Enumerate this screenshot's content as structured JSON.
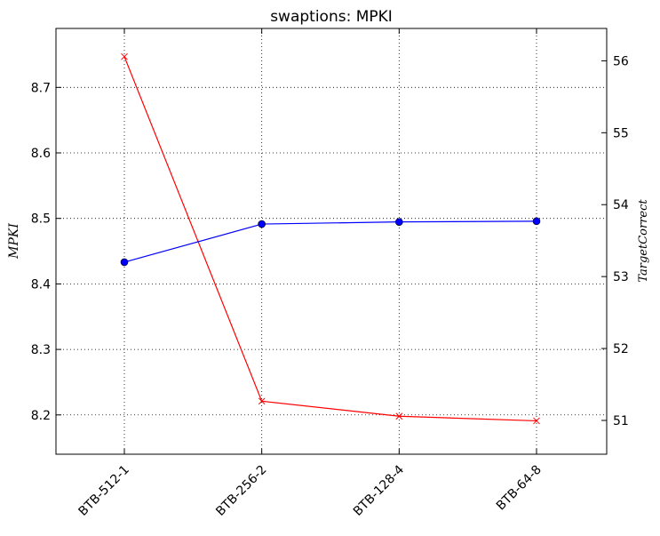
{
  "chart_data": {
    "type": "line",
    "title": "swaptions: MPKI",
    "categories": [
      "BTB-512-1",
      "BTB-256-2",
      "BTB-128-4",
      "BTB-64-8"
    ],
    "ylabel": "MPKI",
    "y2label": "TargetCorrect",
    "ylim": [
      8.14,
      8.79
    ],
    "y2lim": [
      50.53,
      56.45
    ],
    "yticks": [
      "8.2",
      "8.3",
      "8.4",
      "8.5",
      "8.6",
      "8.7"
    ],
    "y2ticks": [
      "51",
      "52",
      "53",
      "54",
      "55",
      "56"
    ],
    "grid": true,
    "series": [
      {
        "axis": "left",
        "color": "#ff0000",
        "marker": "x",
        "values": [
          8.747,
          8.221,
          8.198,
          8.191
        ]
      },
      {
        "axis": "right",
        "color": "#0000ff",
        "marker": "circle",
        "values": [
          53.2,
          53.73,
          53.76,
          53.77
        ]
      }
    ]
  }
}
